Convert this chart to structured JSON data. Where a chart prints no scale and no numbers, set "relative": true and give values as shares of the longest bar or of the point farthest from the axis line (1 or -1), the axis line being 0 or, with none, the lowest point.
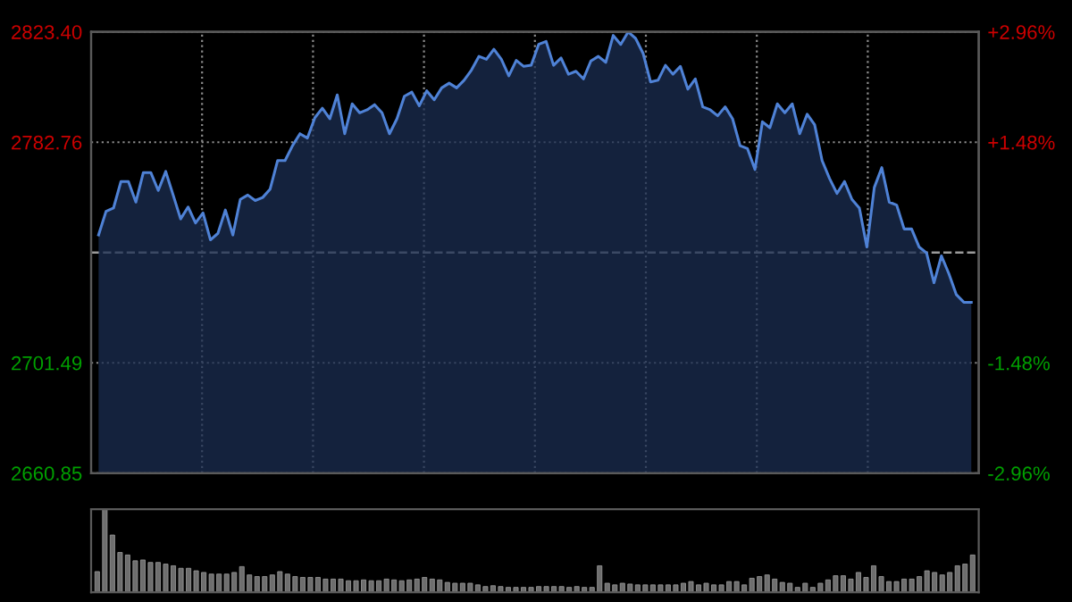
{
  "chart_data": [
    {
      "type": "area",
      "line_style": "solid",
      "marker": "none",
      "grid": true,
      "tick_labels": "y",
      "categories": [
        null,
        null,
        null,
        null,
        null,
        null,
        null,
        null,
        null,
        null,
        null,
        null,
        null,
        null,
        null,
        null,
        null,
        null,
        null,
        null,
        null,
        null,
        null,
        null,
        null,
        null,
        null,
        null,
        null,
        null,
        null,
        null,
        null,
        null,
        null,
        null,
        null,
        null,
        null,
        null,
        null,
        null,
        null,
        null,
        null,
        null,
        null,
        null,
        null,
        null,
        null,
        null,
        null,
        null,
        null,
        null,
        null,
        null,
        null,
        null,
        null,
        null,
        null,
        null,
        null,
        null,
        null,
        null,
        null,
        null,
        null,
        null,
        null,
        null,
        null,
        null,
        null,
        null,
        null,
        null,
        null,
        null,
        null,
        null,
        null,
        null,
        null,
        null,
        null,
        null,
        null,
        null,
        null,
        null,
        null,
        null,
        null,
        null,
        null,
        null,
        null,
        null,
        null,
        null,
        null,
        null,
        null,
        null,
        null,
        null,
        null,
        null,
        null,
        null,
        null,
        null,
        null,
        null
      ],
      "ylim": [
        2660.85,
        2823.4
      ],
      "yticks": [
        {
          "value": 2660.85,
          "label": "2660.85"
        },
        {
          "value": 2701.49,
          "label": "2701.49"
        },
        {
          "value": 2782.76,
          "label": "2782.76"
        },
        {
          "value": 2823.4,
          "label": "2823.40"
        }
      ],
      "y2lim": [
        -2.96,
        2.96
      ],
      "y2ticks": [
        {
          "value": -2.96,
          "label": "-2.96%"
        },
        {
          "value": -1.48,
          "label": "-1.48%"
        },
        {
          "value": 1.48,
          "label": "+1.48%"
        },
        {
          "value": 2.96,
          "label": "+2.96%"
        }
      ],
      "ref_lines": [
        {
          "axis": "y",
          "value": 2742.13,
          "color": "#9a9a9a",
          "line_style": "dashed"
        }
      ],
      "series": [
        {
          "color": "#4f82d6",
          "values": [
            2748.6,
            2757.3,
            2758.5,
            2768.3,
            2768.3,
            2760.7,
            2771.6,
            2771.6,
            2765.0,
            2772.0,
            2763.3,
            2754.5,
            2758.9,
            2753.0,
            2756.7,
            2746.8,
            2749.2,
            2757.8,
            2748.6,
            2761.7,
            2763.3,
            2761.3,
            2762.4,
            2765.5,
            2776.0,
            2776.0,
            2781.5,
            2785.9,
            2784.3,
            2791.8,
            2795.3,
            2791.4,
            2800.2,
            2785.9,
            2796.9,
            2793.6,
            2794.7,
            2796.6,
            2793.6,
            2785.9,
            2791.4,
            2799.7,
            2801.2,
            2796.2,
            2801.7,
            2798.4,
            2802.8,
            2804.5,
            2802.8,
            2805.6,
            2809.4,
            2814.4,
            2813.3,
            2817.0,
            2813.3,
            2807.2,
            2812.9,
            2810.7,
            2811.1,
            2818.8,
            2819.9,
            2811.1,
            2813.8,
            2807.8,
            2808.9,
            2806.1,
            2812.7,
            2814.4,
            2812.2,
            2822.1,
            2818.8,
            2823.4,
            2821.0,
            2815.5,
            2805.0,
            2805.6,
            2811.1,
            2807.8,
            2810.7,
            2802.3,
            2806.1,
            2795.8,
            2794.7,
            2792.5,
            2795.8,
            2791.4,
            2781.5,
            2780.4,
            2772.7,
            2790.3,
            2788.1,
            2796.9,
            2793.6,
            2796.9,
            2785.9,
            2793.1,
            2789.2,
            2776.0,
            2769.4,
            2763.9,
            2768.3,
            2761.7,
            2758.5,
            2744.2,
            2766.1,
            2773.4,
            2760.7,
            2759.6,
            2750.8,
            2750.8,
            2744.2,
            2742.0,
            2731.0,
            2740.9,
            2734.3,
            2726.6,
            2723.8,
            2723.8
          ]
        }
      ]
    },
    {
      "type": "bar",
      "relative": true,
      "tick_labels": false,
      "color": "#6e6e6e",
      "categories": [
        null,
        null,
        null,
        null,
        null,
        null,
        null,
        null,
        null,
        null,
        null,
        null,
        null,
        null,
        null,
        null,
        null,
        null,
        null,
        null,
        null,
        null,
        null,
        null,
        null,
        null,
        null,
        null,
        null,
        null,
        null,
        null,
        null,
        null,
        null,
        null,
        null,
        null,
        null,
        null,
        null,
        null,
        null,
        null,
        null,
        null,
        null,
        null,
        null,
        null,
        null,
        null,
        null,
        null,
        null,
        null,
        null,
        null,
        null,
        null,
        null,
        null,
        null,
        null,
        null,
        null,
        null,
        null,
        null,
        null,
        null,
        null,
        null,
        null,
        null,
        null,
        null,
        null,
        null,
        null,
        null,
        null,
        null,
        null,
        null,
        null,
        null,
        null,
        null,
        null,
        null,
        null,
        null,
        null,
        null,
        null,
        null,
        null,
        null,
        null,
        null,
        null,
        null,
        null,
        null,
        null,
        null,
        null,
        null,
        null,
        null,
        null,
        null,
        null,
        null,
        null
      ],
      "values": [
        0.25,
        1.0,
        0.69,
        0.48,
        0.45,
        0.38,
        0.39,
        0.36,
        0.36,
        0.34,
        0.32,
        0.29,
        0.29,
        0.26,
        0.24,
        0.22,
        0.22,
        0.22,
        0.24,
        0.31,
        0.21,
        0.19,
        0.19,
        0.21,
        0.25,
        0.22,
        0.19,
        0.18,
        0.18,
        0.18,
        0.16,
        0.16,
        0.16,
        0.14,
        0.14,
        0.15,
        0.14,
        0.14,
        0.16,
        0.15,
        0.14,
        0.15,
        0.16,
        0.18,
        0.16,
        0.15,
        0.12,
        0.11,
        0.11,
        0.11,
        0.09,
        0.07,
        0.08,
        0.07,
        0.06,
        0.06,
        0.06,
        0.06,
        0.07,
        0.07,
        0.07,
        0.07,
        0.06,
        0.07,
        0.06,
        0.06,
        0.32,
        0.11,
        0.09,
        0.11,
        0.1,
        0.09,
        0.09,
        0.09,
        0.09,
        0.09,
        0.09,
        0.11,
        0.13,
        0.09,
        0.11,
        0.09,
        0.09,
        0.13,
        0.13,
        0.09,
        0.17,
        0.19,
        0.21,
        0.16,
        0.12,
        0.11,
        0.06,
        0.11,
        0.06,
        0.11,
        0.15,
        0.2,
        0.2,
        0.16,
        0.24,
        0.18,
        0.32,
        0.19,
        0.13,
        0.13,
        0.16,
        0.16,
        0.19,
        0.26,
        0.24,
        0.21,
        0.24,
        0.32,
        0.34,
        0.45
      ]
    }
  ]
}
